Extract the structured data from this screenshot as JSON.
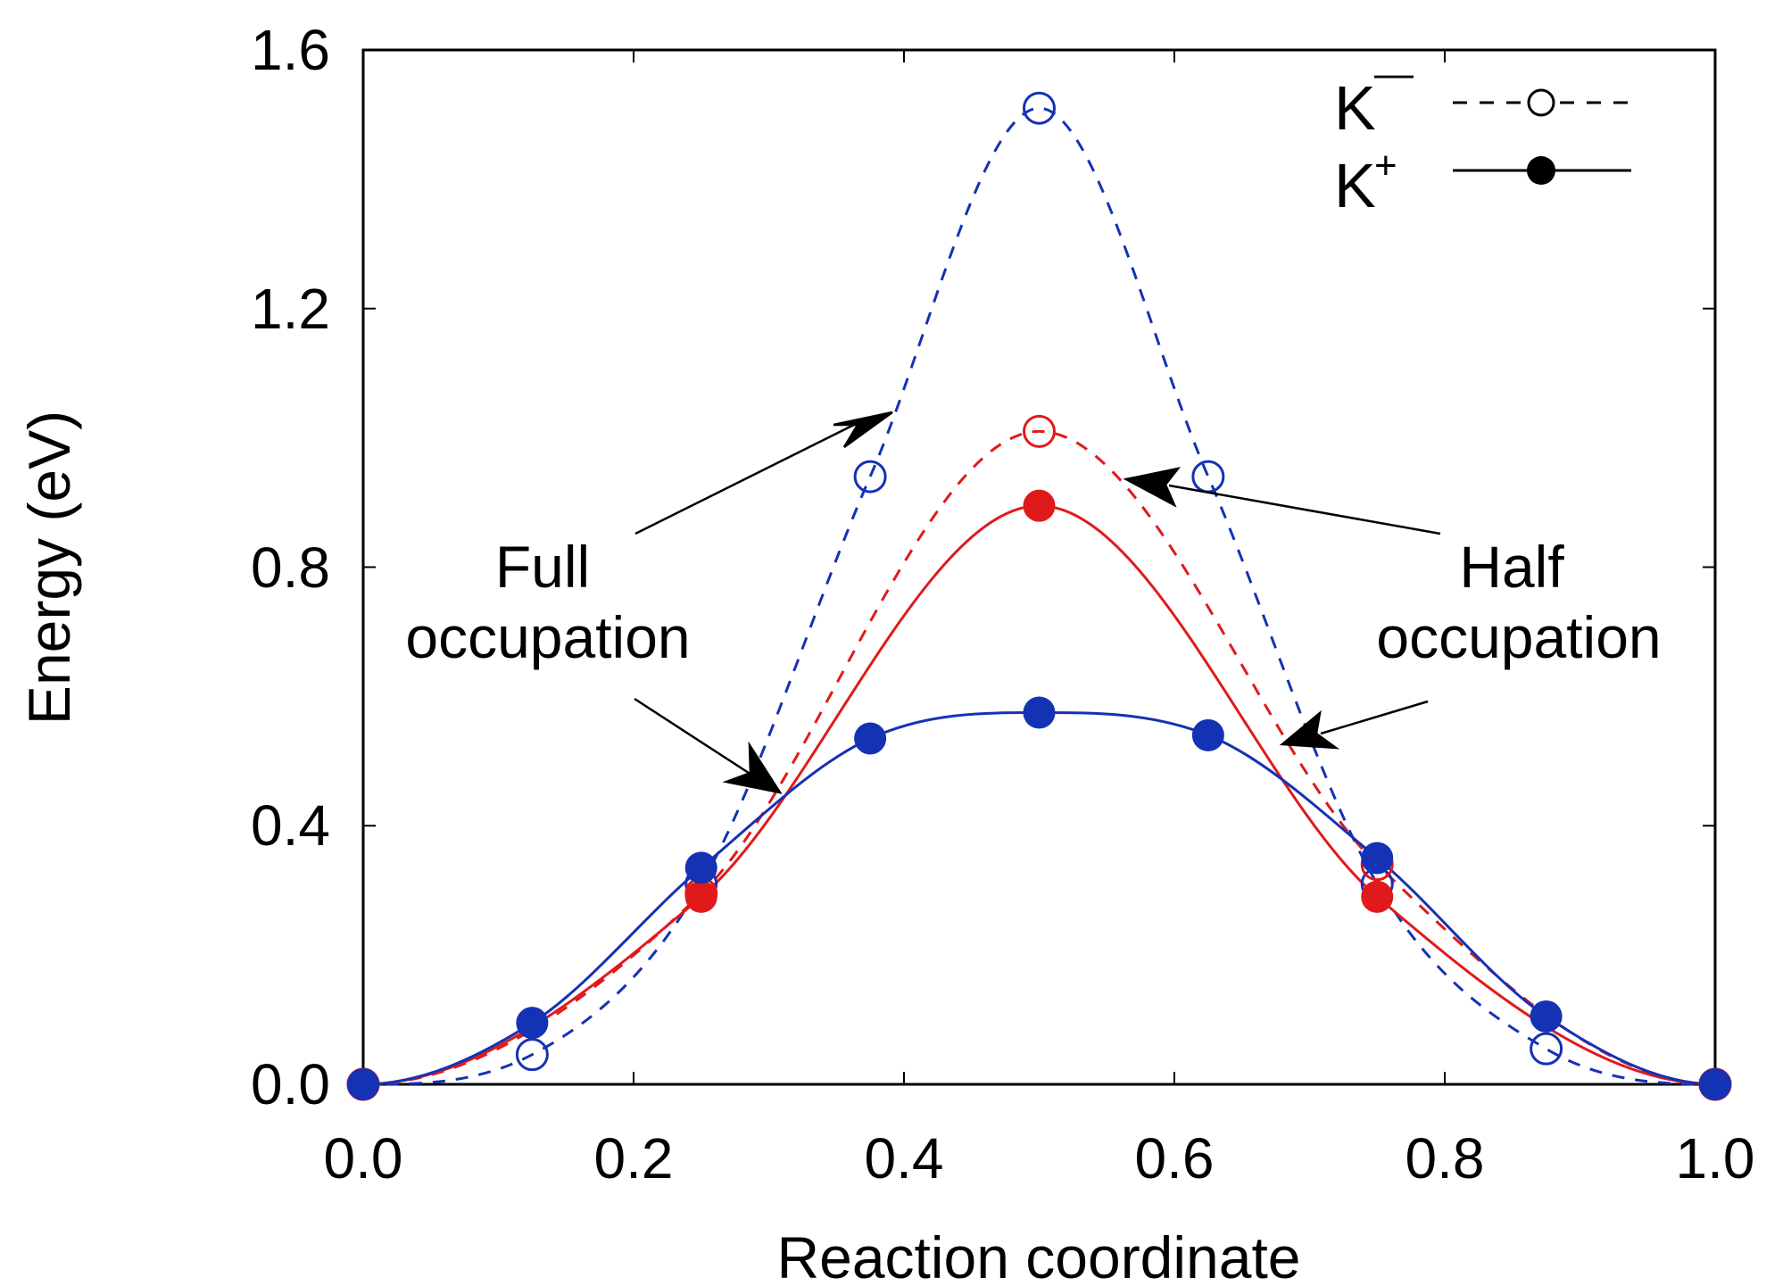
{
  "chart_data": {
    "type": "line",
    "title": "",
    "xlabel": "Reaction coordinate",
    "ylabel": "Energy (eV)",
    "xlim": [
      0.0,
      1.0
    ],
    "ylim": [
      0.0,
      1.6
    ],
    "x_ticks": [
      "0.0",
      "0.2",
      "0.4",
      "0.6",
      "0.8",
      "1.0"
    ],
    "y_ticks": [
      "0.0",
      "0.4",
      "0.8",
      "1.2",
      "1.6"
    ],
    "grid": false,
    "legend": {
      "placement": "top-right",
      "entries": [
        {
          "base": "K",
          "sup": "—",
          "style": "dashed line, open circle"
        },
        {
          "base": "K",
          "sup": "+",
          "style": "solid line, filled circle"
        }
      ]
    },
    "colors": {
      "blue": "#1432b4",
      "red": "#e01a1a"
    },
    "series": [
      {
        "variant": "K-",
        "color": "#1432b4",
        "marker": "open",
        "line": "dashed",
        "x": [
          0.0,
          0.125,
          0.25,
          0.375,
          0.5,
          0.625,
          0.75,
          0.875,
          1.0
        ],
        "y": [
          0.0,
          0.046,
          0.31,
          0.94,
          1.51,
          0.94,
          0.31,
          0.055,
          0.0
        ]
      },
      {
        "variant": "K-",
        "color": "#e01a1a",
        "marker": "open",
        "line": "dashed",
        "x": [
          0.0,
          0.25,
          0.5,
          0.75,
          1.0
        ],
        "y": [
          0.0,
          0.295,
          1.01,
          0.34,
          0.0
        ]
      },
      {
        "variant": "K+",
        "color": "#e01a1a",
        "marker": "filled",
        "line": "solid",
        "x": [
          0.0,
          0.25,
          0.5,
          0.75,
          1.0
        ],
        "y": [
          0.0,
          0.29,
          0.895,
          0.29,
          0.0
        ]
      },
      {
        "variant": "K+",
        "color": "#1432b4",
        "marker": "filled",
        "line": "solid",
        "x": [
          0.0,
          0.125,
          0.25,
          0.375,
          0.5,
          0.625,
          0.75,
          0.875,
          1.0
        ],
        "y": [
          0.0,
          0.095,
          0.335,
          0.535,
          0.575,
          0.54,
          0.35,
          0.105,
          0.0
        ]
      }
    ],
    "annotations": [
      {
        "lines": [
          "Full",
          "occupation"
        ]
      },
      {
        "lines": [
          "Half",
          "occupation"
        ]
      }
    ]
  }
}
